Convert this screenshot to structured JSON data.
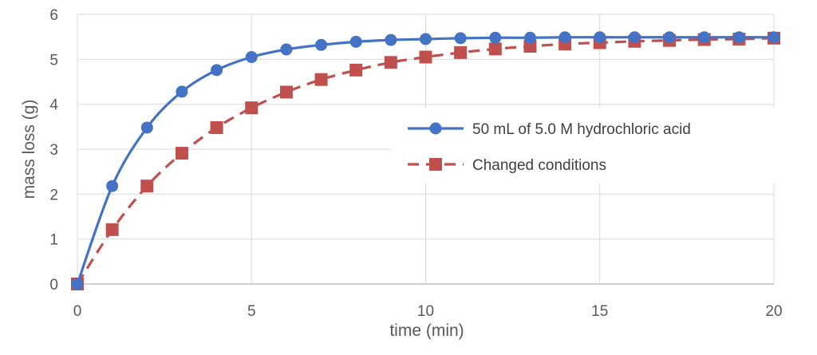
{
  "chart_data": {
    "type": "line",
    "title": "",
    "xlabel": "time (min)",
    "ylabel": "mass loss (g)",
    "xlim": [
      0,
      20
    ],
    "ylim": [
      0,
      6
    ],
    "x_ticks": [
      "0",
      "5",
      "10",
      "15",
      "20"
    ],
    "y_ticks": [
      "0",
      "1",
      "2",
      "3",
      "4",
      "5",
      "6"
    ],
    "grid": true,
    "legend_position": "right",
    "x": [
      0,
      1,
      2,
      3,
      4,
      5,
      6,
      7,
      8,
      9,
      10,
      11,
      12,
      13,
      14,
      15,
      16,
      17,
      18,
      19,
      20
    ],
    "series": [
      {
        "name": "50 mL of 5.0 M hydrochloric acid",
        "color": "#4472c4",
        "marker": "circle",
        "line_style": "solid",
        "values": [
          0,
          2.18,
          3.48,
          4.28,
          4.76,
          5.05,
          5.22,
          5.32,
          5.39,
          5.43,
          5.45,
          5.47,
          5.48,
          5.48,
          5.49,
          5.49,
          5.49,
          5.49,
          5.49,
          5.49,
          5.49
        ]
      },
      {
        "name": "Changed conditions",
        "color": "#c0504d",
        "marker": "square",
        "line_style": "dashed",
        "values": [
          0,
          1.21,
          2.18,
          2.91,
          3.48,
          3.92,
          4.27,
          4.55,
          4.76,
          4.93,
          5.05,
          5.15,
          5.23,
          5.29,
          5.34,
          5.37,
          5.4,
          5.42,
          5.44,
          5.45,
          5.47
        ]
      }
    ]
  }
}
